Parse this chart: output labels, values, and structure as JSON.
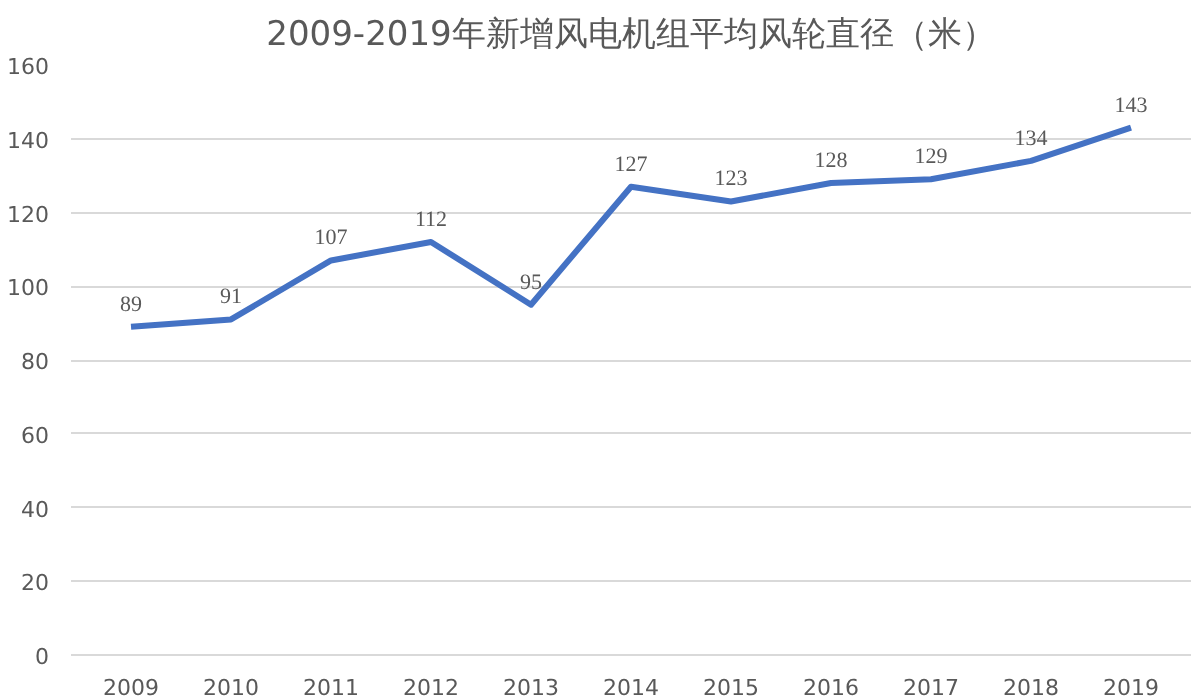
{
  "chart_data": {
    "type": "line",
    "title": "2009-2019年新增风电机组平均风轮直径（米）",
    "categories": [
      "2009",
      "2010",
      "2011",
      "2012",
      "2013",
      "2014",
      "2015",
      "2016",
      "2017",
      "2018",
      "2019"
    ],
    "series": [
      {
        "color": "#4472c4",
        "values": [
          89,
          91,
          107,
          112,
          95,
          127,
          123,
          128,
          129,
          134,
          143
        ]
      }
    ],
    "ylim": [
      0,
      160
    ],
    "yticks": [
      0,
      20,
      40,
      60,
      80,
      100,
      120,
      140,
      160
    ],
    "grid": "y",
    "data_labels": true,
    "marker": "none",
    "line_style": "solid"
  }
}
